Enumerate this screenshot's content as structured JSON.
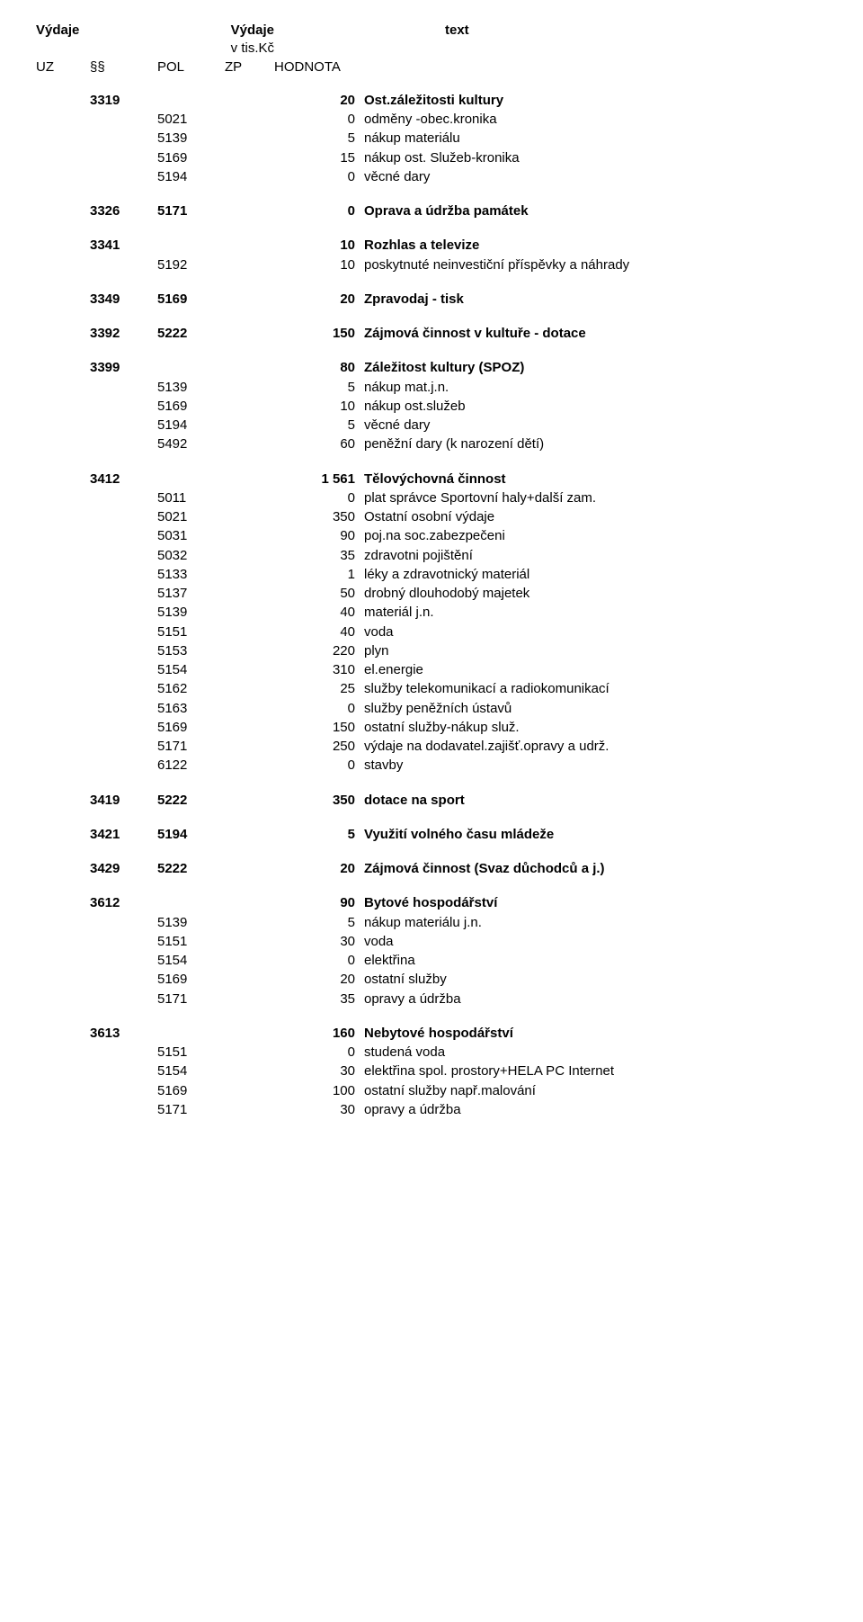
{
  "header": {
    "vydaje1": "Výdaje",
    "vydaje2": "Výdaje",
    "text": "text",
    "vtis": "v tis.Kč",
    "uz": "UZ",
    "par": "§§",
    "pol": "POL",
    "zp": "ZP",
    "hodnota": "HODNOTA"
  },
  "rows": [
    {
      "par": "3319",
      "val": "20",
      "txt": "Ost.záležitosti kultury",
      "bold": true
    },
    {
      "pol": "5021",
      "val": "0",
      "txt": "odměny -obec.kronika"
    },
    {
      "pol": "5139",
      "val": "5",
      "txt": "nákup materiálu"
    },
    {
      "pol": "5169",
      "val": "15",
      "txt": "nákup ost. Služeb-kronika"
    },
    {
      "pol": "5194",
      "val": "0",
      "txt": "věcné dary"
    },
    {
      "gap": true
    },
    {
      "par": "3326",
      "pol": "5171",
      "val": "0",
      "txt": "Oprava a údržba památek",
      "bold": true
    },
    {
      "gap": true
    },
    {
      "par": "3341",
      "val": "10",
      "txt": "Rozhlas a televize",
      "bold": true
    },
    {
      "pol": "5192",
      "val": "10",
      "txt": "poskytnuté neinvestiční příspěvky a náhrady"
    },
    {
      "gap": true
    },
    {
      "par": "3349",
      "pol": "5169",
      "val": "20",
      "txt": "Zpravodaj - tisk",
      "bold": true
    },
    {
      "gap": true
    },
    {
      "par": "3392",
      "pol": "5222",
      "val": "150",
      "txt": "Zájmová činnost v kultuře - dotace",
      "bold": true
    },
    {
      "gap": true
    },
    {
      "par": "3399",
      "val": "80",
      "txt": "Záležitost kultury (SPOZ)",
      "bold": true
    },
    {
      "pol": "5139",
      "val": "5",
      "txt": "nákup mat.j.n."
    },
    {
      "pol": "5169",
      "val": "10",
      "txt": "nákup ost.služeb"
    },
    {
      "pol": "5194",
      "val": "5",
      "txt": "věcné dary"
    },
    {
      "pol": "5492",
      "val": "60",
      "txt": "peněžní dary (k narození dětí)"
    },
    {
      "gap": true
    },
    {
      "par": "3412",
      "val": "1 561",
      "txt": "Tělovýchovná činnost",
      "bold": true
    },
    {
      "pol": "5011",
      "val": "0",
      "txt": "plat správce Sportovní haly+další zam."
    },
    {
      "pol": "5021",
      "val": "350",
      "txt": "Ostatní osobní výdaje"
    },
    {
      "pol": "5031",
      "val": "90",
      "txt": "poj.na soc.zabezpečeni"
    },
    {
      "pol": "5032",
      "val": "35",
      "txt": "zdravotni pojištění"
    },
    {
      "pol": "5133",
      "val": "1",
      "txt": "léky a zdravotnický materiál"
    },
    {
      "pol": "5137",
      "val": "50",
      "txt": "drobný dlouhodobý majetek"
    },
    {
      "pol": "5139",
      "val": "40",
      "txt": "materiál j.n."
    },
    {
      "pol": "5151",
      "val": "40",
      "txt": "voda"
    },
    {
      "pol": "5153",
      "val": "220",
      "txt": "plyn"
    },
    {
      "pol": "5154",
      "val": "310",
      "txt": "el.energie"
    },
    {
      "pol": "5162",
      "val": "25",
      "txt": "služby telekomunikací a radiokomunikací"
    },
    {
      "pol": "5163",
      "val": "0",
      "txt": "služby peněžních ústavů"
    },
    {
      "pol": "5169",
      "val": "150",
      "txt": "ostatní služby-nákup služ."
    },
    {
      "pol": "5171",
      "val": "250",
      "txt": "výdaje na dodavatel.zajišť.opravy a udrž."
    },
    {
      "pol": "6122",
      "val": "0",
      "txt": "stavby"
    },
    {
      "gap": true
    },
    {
      "par": "3419",
      "pol": "5222",
      "val": "350",
      "txt": "dotace na sport",
      "bold": true
    },
    {
      "gap": true
    },
    {
      "par": "3421",
      "pol": "5194",
      "val": "5",
      "txt": "Využití volného času mládeže",
      "bold": true
    },
    {
      "gap": true
    },
    {
      "par": "3429",
      "pol": "5222",
      "val": "20",
      "txt": "Zájmová činnost (Svaz důchodců a j.)",
      "bold": true
    },
    {
      "gap": true
    },
    {
      "par": "3612",
      "val": "90",
      "txt": "Bytové hospodářství",
      "bold": true
    },
    {
      "pol": "5139",
      "val": "5",
      "txt": "nákup materiálu j.n."
    },
    {
      "pol": "5151",
      "val": "30",
      "txt": "voda"
    },
    {
      "pol": "5154",
      "val": "0",
      "txt": "elektřina"
    },
    {
      "pol": "5169",
      "val": "20",
      "txt": "ostatní služby"
    },
    {
      "pol": "5171",
      "val": "35",
      "txt": "opravy a údržba"
    },
    {
      "gap": true
    },
    {
      "par": "3613",
      "val": "160",
      "txt": "Nebytové hospodářství",
      "bold": true
    },
    {
      "pol": "5151",
      "val": "0",
      "txt": "studená voda"
    },
    {
      "pol": "5154",
      "val": "30",
      "txt": "elektřina spol. prostory+HELA PC Internet"
    },
    {
      "pol": "5169",
      "val": "100",
      "txt": "ostatní služby např.malování"
    },
    {
      "pol": "5171",
      "val": "30",
      "txt": "opravy a údržba"
    }
  ]
}
